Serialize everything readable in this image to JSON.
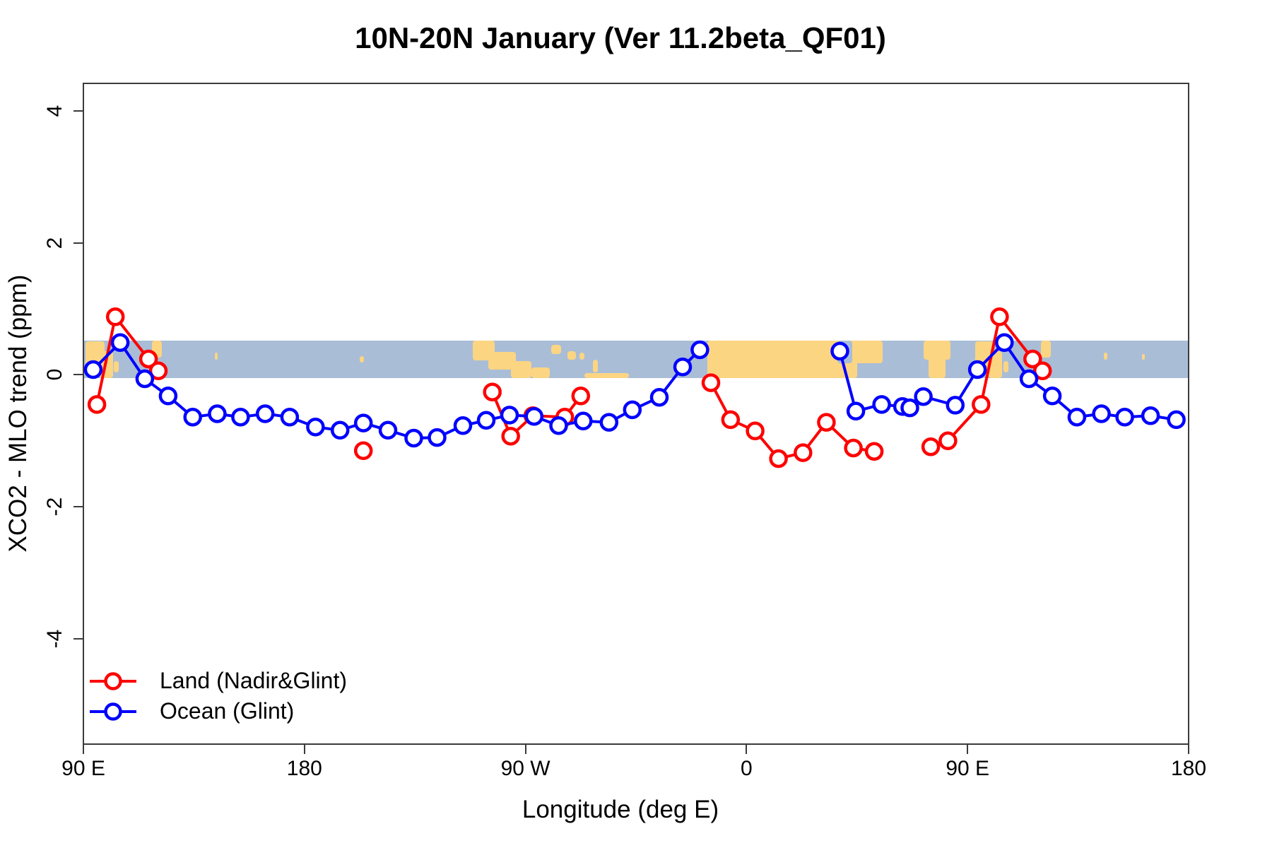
{
  "chart_data": {
    "type": "line",
    "title": "10N-20N January (Ver 11.2beta_QF01)",
    "xlabel": "Longitude (deg E)",
    "ylabel": "XCO2 - MLO trend (ppm)",
    "xlim": [
      90,
      540
    ],
    "ylim": [
      -5.6,
      4.42
    ],
    "grid": false,
    "legend_position": "bottom-left",
    "x_ticks": {
      "values": [
        90,
        180,
        270,
        360,
        450,
        540
      ],
      "labels": [
        "90 E",
        "180",
        "90 W",
        "0",
        "90 E",
        "180"
      ]
    },
    "y_ticks": {
      "values": [
        4,
        2,
        0,
        -2,
        -4
      ],
      "labels": [
        "4",
        "2",
        "0",
        "-2",
        "-4"
      ]
    },
    "colors": {
      "axis": "#3b3b3b",
      "text": "#000000",
      "band_ocean": "#a9bdd7",
      "band_land": "#fcd582",
      "land_series": "#ff0000",
      "ocean_series": "#0000ff"
    },
    "map_band": {
      "value_top": 0.52,
      "value_bottom": -0.05,
      "ocean_color": "#a9bdd7",
      "land_color": "#fcd582",
      "land_patches": [
        [
          91,
          98.5,
          0.02,
          0.82
        ],
        [
          96.5,
          102,
          0.28,
          1.0
        ],
        [
          102.5,
          104.5,
          0.55,
          0.85
        ],
        [
          115.5,
          117.5,
          0.5,
          0.72
        ],
        [
          118,
          122,
          0.0,
          0.45
        ],
        [
          143.5,
          144.8,
          0.32,
          0.5
        ],
        [
          202.5,
          204.2,
          0.42,
          0.58
        ],
        [
          248.5,
          257.5,
          0.0,
          0.52
        ],
        [
          255,
          266,
          0.3,
          0.78
        ],
        [
          264,
          272.5,
          0.55,
          1.0
        ],
        [
          272.5,
          280,
          0.72,
          1.0
        ],
        [
          280.5,
          284.5,
          0.12,
          0.35
        ],
        [
          287,
          290.5,
          0.28,
          0.5
        ],
        [
          292,
          294,
          0.33,
          0.5
        ],
        [
          297.5,
          299.5,
          0.5,
          0.85
        ],
        [
          294,
          312,
          0.86,
          1.0
        ],
        [
          344,
          405,
          0.0,
          1.0
        ],
        [
          401,
          415.5,
          0.0,
          0.6
        ],
        [
          432,
          443,
          0.0,
          0.5
        ],
        [
          434,
          441,
          0.45,
          1.0
        ],
        [
          453,
          460.5,
          0.02,
          0.82
        ],
        [
          458.5,
          464,
          0.28,
          1.0
        ],
        [
          464.5,
          466.5,
          0.55,
          0.85
        ],
        [
          477.5,
          479.5,
          0.5,
          0.72
        ],
        [
          480,
          484,
          0.0,
          0.45
        ],
        [
          505.5,
          506.8,
          0.32,
          0.5
        ],
        [
          521,
          522.3,
          0.35,
          0.5
        ]
      ],
      "ocean_patches": [
        [
          397,
          403,
          0.0,
          0.6
        ]
      ]
    },
    "legend_entries": [
      {
        "label": "Land (Nadir&Glint)",
        "color": "#ff0000"
      },
      {
        "label": "Ocean (Glint)",
        "color": "#0000ff"
      }
    ],
    "series": [
      {
        "name": "Land (Nadir&Glint)",
        "color": "#ff0000",
        "marker": "open-circle",
        "segments": [
          [
            [
              95.5,
              -0.45
            ],
            [
              103,
              0.88
            ],
            [
              116.5,
              0.24
            ],
            [
              120.5,
              0.06
            ]
          ],
          [
            [
              204,
              -1.15
            ]
          ],
          [
            [
              256.5,
              -0.26
            ],
            [
              264,
              -0.93
            ],
            [
              273,
              -0.62
            ],
            [
              286,
              -0.64
            ],
            [
              292.5,
              -0.32
            ]
          ],
          [
            [
              345.5,
              -0.12
            ],
            [
              353.5,
              -0.68
            ],
            [
              363.5,
              -0.85
            ],
            [
              373,
              -1.27
            ],
            [
              383,
              -1.18
            ],
            [
              392.5,
              -0.72
            ],
            [
              403.5,
              -1.11
            ],
            [
              412,
              -1.16
            ]
          ],
          [
            [
              435,
              -1.09
            ],
            [
              442,
              -1.0
            ],
            [
              455.5,
              -0.45
            ],
            [
              463,
              0.88
            ],
            [
              476.5,
              0.24
            ],
            [
              480.5,
              0.06
            ]
          ]
        ]
      },
      {
        "name": "Ocean (Glint)",
        "color": "#0000ff",
        "marker": "open-circle",
        "segments": [
          [
            [
              94,
              0.08
            ],
            [
              105,
              0.49
            ],
            [
              115,
              -0.06
            ],
            [
              124.5,
              -0.32
            ],
            [
              134.5,
              -0.64
            ],
            [
              144.5,
              -0.59
            ],
            [
              154,
              -0.64
            ],
            [
              164,
              -0.59
            ],
            [
              174,
              -0.64
            ],
            [
              184.5,
              -0.79
            ],
            [
              194.5,
              -0.84
            ],
            [
              204,
              -0.73
            ],
            [
              214,
              -0.84
            ],
            [
              224.5,
              -0.96
            ],
            [
              234,
              -0.95
            ],
            [
              244.5,
              -0.77
            ],
            [
              254,
              -0.69
            ],
            [
              263.5,
              -0.61
            ],
            [
              273.5,
              -0.63
            ],
            [
              283.5,
              -0.77
            ],
            [
              293.5,
              -0.7
            ],
            [
              304,
              -0.72
            ],
            [
              313.5,
              -0.53
            ],
            [
              324.5,
              -0.34
            ],
            [
              334,
              0.12
            ],
            [
              341,
              0.38
            ]
          ],
          [
            [
              398,
              0.36
            ],
            [
              404.5,
              -0.55
            ],
            [
              415,
              -0.45
            ],
            [
              423.5,
              -0.48
            ],
            [
              426.5,
              -0.5
            ],
            [
              432,
              -0.33
            ],
            [
              445,
              -0.46
            ],
            [
              454,
              0.08
            ],
            [
              465,
              0.49
            ],
            [
              475,
              -0.06
            ],
            [
              484.5,
              -0.32
            ],
            [
              494.5,
              -0.64
            ],
            [
              504.5,
              -0.59
            ],
            [
              514,
              -0.64
            ],
            [
              524.5,
              -0.62
            ],
            [
              535,
              -0.68
            ]
          ]
        ]
      }
    ]
  }
}
